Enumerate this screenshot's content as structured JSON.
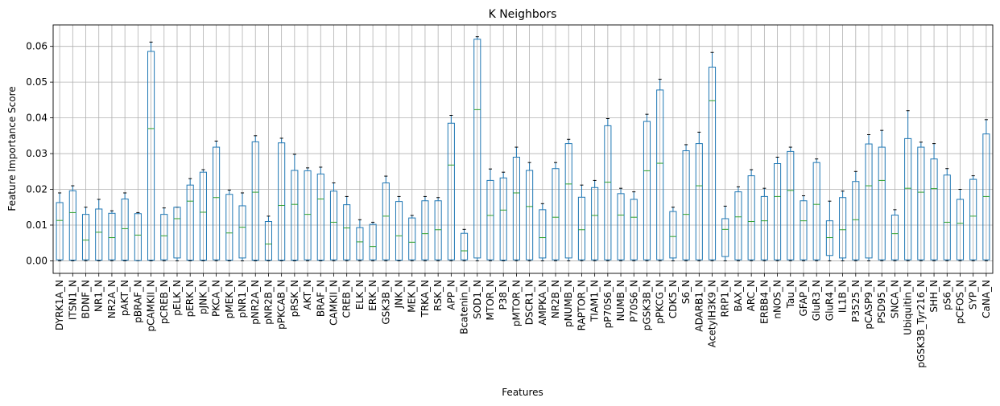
{
  "chart_data": {
    "type": "box",
    "title": "K Neighbors",
    "xlabel": "Features",
    "ylabel": "Feature Importance Score",
    "ylim": [
      -0.0035,
      0.066
    ],
    "yticks": [
      "0.00",
      "0.01",
      "0.02",
      "0.03",
      "0.04",
      "0.05",
      "0.06"
    ],
    "ytick_values": [
      0,
      0.01,
      0.02,
      0.03,
      0.04,
      0.05,
      0.06
    ],
    "grid": true,
    "colors": {
      "box": "#1f77b4",
      "median": "#2ca02c",
      "whisker": "#1f77b4",
      "grid": "#b0b0b0"
    },
    "categories": [
      "DYRK1A_N",
      "ITSN1_N",
      "BDNF_N",
      "NR1_N",
      "NR2A_N",
      "pAKT_N",
      "pBRAF_N",
      "pCAMKII_N",
      "pCREB_N",
      "pELK_N",
      "pERK_N",
      "pJNK_N",
      "PKCA_N",
      "pMEK_N",
      "pNR1_N",
      "pNR2A_N",
      "pNR2B_N",
      "pPKCAB_N",
      "pRSK_N",
      "AKT_N",
      "BRAF_N",
      "CAMKII_N",
      "CREB_N",
      "ELK_N",
      "ERK_N",
      "GSK3B_N",
      "JNK_N",
      "MEK_N",
      "TRKA_N",
      "RSK_N",
      "APP_N",
      "Bcatenin_N",
      "SOD1_N",
      "MTOR_N",
      "P38_N",
      "pMTOR_N",
      "DSCR1_N",
      "AMPKA_N",
      "NR2B_N",
      "pNUMB_N",
      "RAPTOR_N",
      "TIAM1_N",
      "pP70S6_N",
      "NUMB_N",
      "P70S6_N",
      "pGSK3B_N",
      "pPKCG_N",
      "CDK5_N",
      "S6_N",
      "ADARB1_N",
      "AcetylH3K9_N",
      "RRP1_N",
      "BAX_N",
      "ARC_N",
      "ERBB4_N",
      "nNOS_N",
      "Tau_N",
      "GFAP_N",
      "GluR3_N",
      "GluR4_N",
      "IL1B_N",
      "P3525_N",
      "pCASP9_N",
      "PSD95_N",
      "SNCA_N",
      "Ubiquitin_N",
      "pGSK3B_Tyr216_N",
      "SHH_N",
      "pS6_N",
      "pCFOS_N",
      "SYP_N",
      "CaNA_N"
    ],
    "boxes": [
      {
        "min": 0.0,
        "q1": 0.0003,
        "median": 0.0113,
        "q3": 0.0163,
        "max": 0.019
      },
      {
        "min": 0.0,
        "q1": 0.0002,
        "median": 0.0135,
        "q3": 0.0196,
        "max": 0.021
      },
      {
        "min": 0.0,
        "q1": 0.0003,
        "median": 0.0058,
        "q3": 0.013,
        "max": 0.015
      },
      {
        "min": 0.0,
        "q1": 0.0002,
        "median": 0.008,
        "q3": 0.0145,
        "max": 0.0172
      },
      {
        "min": 0.0,
        "q1": 0.0003,
        "median": 0.0065,
        "q3": 0.0133,
        "max": 0.014
      },
      {
        "min": 0.0,
        "q1": 0.0002,
        "median": 0.009,
        "q3": 0.0173,
        "max": 0.019
      },
      {
        "min": 0.0,
        "q1": 0.0001,
        "median": 0.0072,
        "q3": 0.0132,
        "max": 0.0135
      },
      {
        "min": 0.0,
        "q1": 0.0002,
        "median": 0.037,
        "q3": 0.0586,
        "max": 0.0612
      },
      {
        "min": 0.0,
        "q1": 0.0003,
        "median": 0.007,
        "q3": 0.013,
        "max": 0.0148
      },
      {
        "min": 0.0,
        "q1": 0.0008,
        "median": 0.0118,
        "q3": 0.015,
        "max": 0.015
      },
      {
        "min": 0.0,
        "q1": 0.0002,
        "median": 0.0167,
        "q3": 0.0212,
        "max": 0.023
      },
      {
        "min": 0.0,
        "q1": 0.0002,
        "median": 0.0136,
        "q3": 0.0248,
        "max": 0.0255
      },
      {
        "min": 0.0,
        "q1": 0.0003,
        "median": 0.0177,
        "q3": 0.0318,
        "max": 0.0335
      },
      {
        "min": 0.0,
        "q1": 0.0002,
        "median": 0.0078,
        "q3": 0.0186,
        "max": 0.0198
      },
      {
        "min": 0.0,
        "q1": 0.0008,
        "median": 0.0094,
        "q3": 0.0154,
        "max": 0.019
      },
      {
        "min": 0.0,
        "q1": 0.0002,
        "median": 0.0192,
        "q3": 0.0333,
        "max": 0.035
      },
      {
        "min": 0.0,
        "q1": 0.0002,
        "median": 0.0047,
        "q3": 0.011,
        "max": 0.0125
      },
      {
        "min": 0.0,
        "q1": 0.0002,
        "median": 0.0155,
        "q3": 0.033,
        "max": 0.0343
      },
      {
        "min": 0.0,
        "q1": 0.0002,
        "median": 0.0158,
        "q3": 0.0253,
        "max": 0.0298
      },
      {
        "min": 0.0,
        "q1": 0.0003,
        "median": 0.013,
        "q3": 0.0252,
        "max": 0.026
      },
      {
        "min": 0.0,
        "q1": 0.0002,
        "median": 0.0173,
        "q3": 0.0243,
        "max": 0.0262
      },
      {
        "min": 0.0,
        "q1": 0.0003,
        "median": 0.0108,
        "q3": 0.0195,
        "max": 0.0218
      },
      {
        "min": 0.0,
        "q1": 0.0003,
        "median": 0.0092,
        "q3": 0.0157,
        "max": 0.018
      },
      {
        "min": 0.0,
        "q1": 0.0003,
        "median": 0.0053,
        "q3": 0.0093,
        "max": 0.0115
      },
      {
        "min": 0.0,
        "q1": 0.0003,
        "median": 0.004,
        "q3": 0.0102,
        "max": 0.0108
      },
      {
        "min": 0.0,
        "q1": 0.0003,
        "median": 0.0125,
        "q3": 0.0218,
        "max": 0.0237
      },
      {
        "min": 0.0,
        "q1": 0.0002,
        "median": 0.007,
        "q3": 0.0166,
        "max": 0.018
      },
      {
        "min": 0.0,
        "q1": 0.0003,
        "median": 0.0052,
        "q3": 0.012,
        "max": 0.0127
      },
      {
        "min": 0.0,
        "q1": 0.0003,
        "median": 0.0076,
        "q3": 0.0168,
        "max": 0.018
      },
      {
        "min": 0.0,
        "q1": 0.0003,
        "median": 0.0087,
        "q3": 0.0168,
        "max": 0.0177
      },
      {
        "min": 0.0,
        "q1": 0.0003,
        "median": 0.0268,
        "q3": 0.0385,
        "max": 0.0407
      },
      {
        "min": 0.0,
        "q1": 0.0003,
        "median": 0.0028,
        "q3": 0.0077,
        "max": 0.0088
      },
      {
        "min": 0.0,
        "q1": 0.0008,
        "median": 0.0423,
        "q3": 0.062,
        "max": 0.0627
      },
      {
        "min": 0.0,
        "q1": 0.0003,
        "median": 0.0127,
        "q3": 0.0225,
        "max": 0.0257
      },
      {
        "min": 0.0,
        "q1": 0.0002,
        "median": 0.0142,
        "q3": 0.0232,
        "max": 0.0248
      },
      {
        "min": 0.0,
        "q1": 0.0003,
        "median": 0.019,
        "q3": 0.029,
        "max": 0.0318
      },
      {
        "min": 0.0,
        "q1": 0.0003,
        "median": 0.0152,
        "q3": 0.0253,
        "max": 0.0275
      },
      {
        "min": 0.0,
        "q1": 0.0008,
        "median": 0.0065,
        "q3": 0.0143,
        "max": 0.016
      },
      {
        "min": 0.0,
        "q1": 0.0003,
        "median": 0.0122,
        "q3": 0.0258,
        "max": 0.0275
      },
      {
        "min": 0.0,
        "q1": 0.0008,
        "median": 0.0215,
        "q3": 0.0328,
        "max": 0.034
      },
      {
        "min": 0.0,
        "q1": 0.0003,
        "median": 0.0087,
        "q3": 0.0178,
        "max": 0.0212
      },
      {
        "min": 0.0,
        "q1": 0.0003,
        "median": 0.0127,
        "q3": 0.0205,
        "max": 0.0225
      },
      {
        "min": 0.0,
        "q1": 0.0003,
        "median": 0.022,
        "q3": 0.0378,
        "max": 0.0398
      },
      {
        "min": 0.0,
        "q1": 0.0003,
        "median": 0.0128,
        "q3": 0.0188,
        "max": 0.0203
      },
      {
        "min": 0.0,
        "q1": 0.0003,
        "median": 0.0122,
        "q3": 0.0172,
        "max": 0.0193
      },
      {
        "min": 0.0,
        "q1": 0.0003,
        "median": 0.0252,
        "q3": 0.039,
        "max": 0.041
      },
      {
        "min": 0.0,
        "q1": 0.0003,
        "median": 0.0273,
        "q3": 0.0478,
        "max": 0.0508
      },
      {
        "min": 0.0,
        "q1": 0.0008,
        "median": 0.0068,
        "q3": 0.0138,
        "max": 0.015
      },
      {
        "min": 0.0,
        "q1": 0.0003,
        "median": 0.013,
        "q3": 0.0308,
        "max": 0.0325
      },
      {
        "min": 0.0,
        "q1": 0.0003,
        "median": 0.021,
        "q3": 0.0328,
        "max": 0.036
      },
      {
        "min": 0.0,
        "q1": 0.0003,
        "median": 0.0448,
        "q3": 0.0542,
        "max": 0.0583
      },
      {
        "min": 0.0,
        "q1": 0.0012,
        "median": 0.0088,
        "q3": 0.0118,
        "max": 0.0153
      },
      {
        "min": 0.0,
        "q1": 0.0003,
        "median": 0.0123,
        "q3": 0.0193,
        "max": 0.0207
      },
      {
        "min": 0.0,
        "q1": 0.0003,
        "median": 0.011,
        "q3": 0.0238,
        "max": 0.0255
      },
      {
        "min": 0.0,
        "q1": 0.0003,
        "median": 0.0112,
        "q3": 0.018,
        "max": 0.0203
      },
      {
        "min": 0.0,
        "q1": 0.0003,
        "median": 0.018,
        "q3": 0.0272,
        "max": 0.029
      },
      {
        "min": 0.0,
        "q1": 0.0003,
        "median": 0.0197,
        "q3": 0.0306,
        "max": 0.0318
      },
      {
        "min": 0.0,
        "q1": 0.0003,
        "median": 0.0112,
        "q3": 0.0168,
        "max": 0.0182
      },
      {
        "min": 0.0,
        "q1": 0.0003,
        "median": 0.0158,
        "q3": 0.0275,
        "max": 0.0285
      },
      {
        "min": 0.0,
        "q1": 0.0015,
        "median": 0.0065,
        "q3": 0.0112,
        "max": 0.0167
      },
      {
        "min": 0.0,
        "q1": 0.0008,
        "median": 0.0087,
        "q3": 0.0177,
        "max": 0.0195
      },
      {
        "min": 0.0,
        "q1": 0.0003,
        "median": 0.0115,
        "q3": 0.0222,
        "max": 0.025
      },
      {
        "min": 0.0,
        "q1": 0.0008,
        "median": 0.021,
        "q3": 0.0327,
        "max": 0.0353
      },
      {
        "min": 0.0,
        "q1": 0.0003,
        "median": 0.0225,
        "q3": 0.0318,
        "max": 0.0365
      },
      {
        "min": 0.0,
        "q1": 0.0003,
        "median": 0.0076,
        "q3": 0.0128,
        "max": 0.0143
      },
      {
        "min": 0.0,
        "q1": 0.0003,
        "median": 0.0203,
        "q3": 0.0342,
        "max": 0.042
      },
      {
        "min": 0.0,
        "q1": 0.0003,
        "median": 0.0192,
        "q3": 0.0318,
        "max": 0.0332
      },
      {
        "min": 0.0,
        "q1": 0.0003,
        "median": 0.0202,
        "q3": 0.0285,
        "max": 0.0328
      },
      {
        "min": 0.0,
        "q1": 0.0003,
        "median": 0.0108,
        "q3": 0.024,
        "max": 0.0258
      },
      {
        "min": 0.0,
        "q1": 0.0003,
        "median": 0.0105,
        "q3": 0.0172,
        "max": 0.02
      },
      {
        "min": 0.0,
        "q1": 0.0003,
        "median": 0.0125,
        "q3": 0.0228,
        "max": 0.0238
      },
      {
        "min": 0.0,
        "q1": 0.0003,
        "median": 0.018,
        "q3": 0.0355,
        "max": 0.0395
      }
    ]
  }
}
